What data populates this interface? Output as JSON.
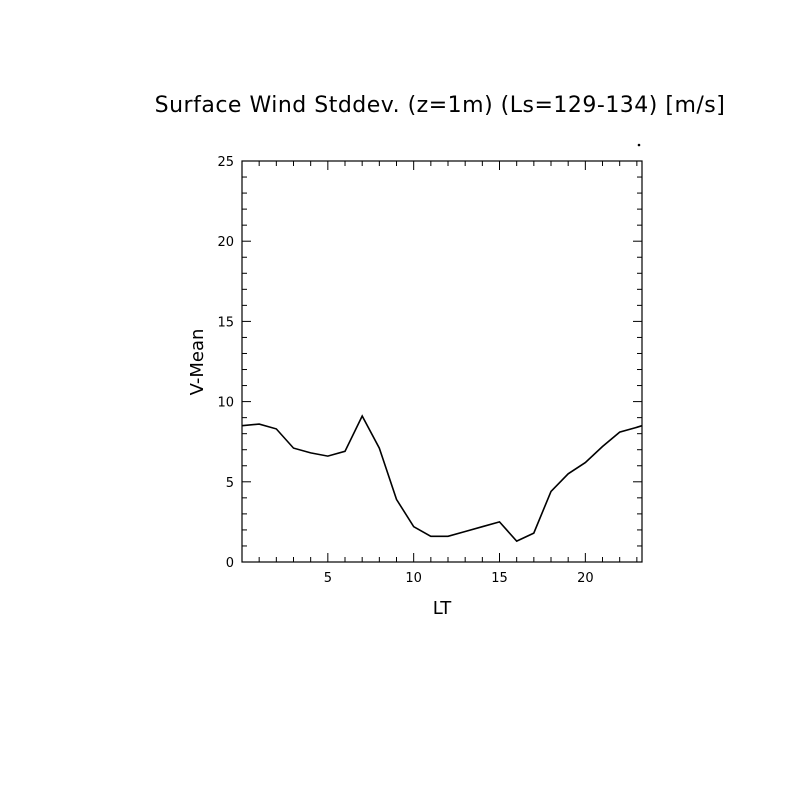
{
  "chart_data": {
    "type": "line",
    "title": "Surface Wind Stddev. (z=1m) (Ls=129-134) [m/s]",
    "xlabel": "LT",
    "ylabel": "V-Mean",
    "xlim": [
      0,
      23.3
    ],
    "ylim": [
      0,
      25
    ],
    "x_ticks": [
      5,
      10,
      15,
      20
    ],
    "x_tick_labels": [
      "5",
      "10",
      "15",
      "20"
    ],
    "y_ticks": [
      0,
      5,
      10,
      15,
      20,
      25
    ],
    "y_tick_labels": [
      "0",
      "5",
      "10",
      "15",
      "20",
      "25"
    ],
    "grid": false,
    "series": [
      {
        "x": [
          0.0,
          1.0,
          2.0,
          3.0,
          4.0,
          5.0,
          6.0,
          7.0,
          8.0,
          9.0,
          10.0,
          11.0,
          12.0,
          13.0,
          14.0,
          15.0,
          16.0,
          17.0,
          18.0,
          19.0,
          20.0,
          21.0,
          22.0,
          23.0,
          23.3
        ],
        "y": [
          8.5,
          8.6,
          8.3,
          7.1,
          6.8,
          6.6,
          6.9,
          9.1,
          7.1,
          3.9,
          2.2,
          1.6,
          1.6,
          1.9,
          2.2,
          2.5,
          1.3,
          1.8,
          4.4,
          5.5,
          6.2,
          7.2,
          8.1,
          8.4,
          8.5
        ]
      }
    ]
  }
}
